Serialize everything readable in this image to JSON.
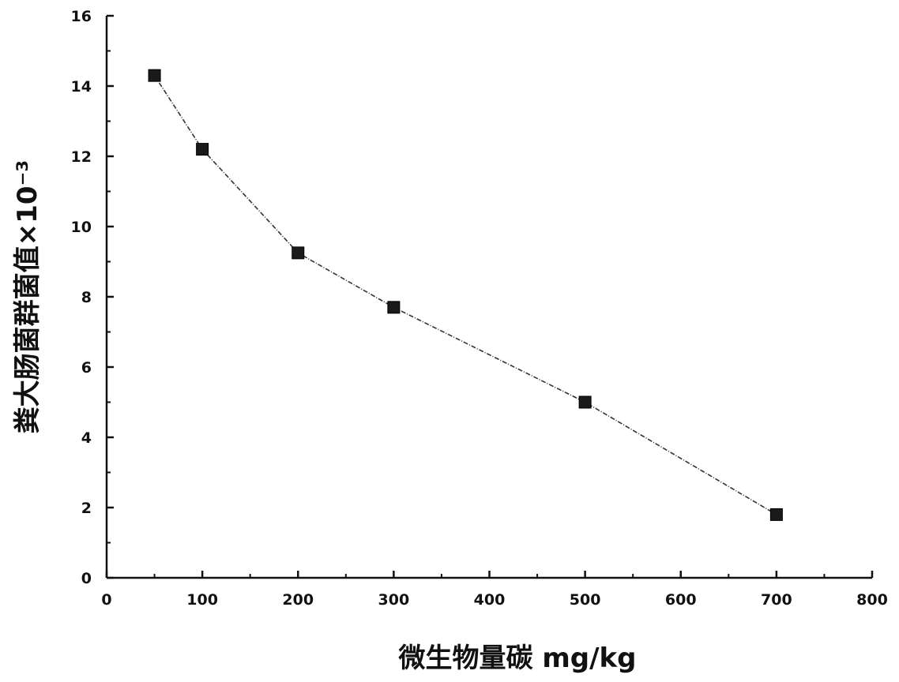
{
  "chart_data": {
    "type": "line",
    "title": "",
    "xlabel": "微生物量碳 mg/kg",
    "ylabel": "粪大肠菌群菌值×10⁻³",
    "xlim": [
      0,
      800
    ],
    "ylim": [
      0,
      16
    ],
    "x_ticks": [
      0,
      100,
      200,
      300,
      400,
      500,
      600,
      700,
      800
    ],
    "y_ticks": [
      0,
      2,
      4,
      6,
      8,
      10,
      12,
      14,
      16
    ],
    "x_tick_labels": [
      "0",
      "100",
      "200",
      "300",
      "400",
      "500",
      "600",
      "700",
      "800"
    ],
    "y_tick_labels": [
      "0",
      "2",
      "4",
      "6",
      "8",
      "10",
      "12",
      "14",
      "16"
    ],
    "grid": false,
    "legend": "none",
    "marker": "square",
    "colors": {
      "axis": "#111111",
      "line": "#333333",
      "marker": "#1a1a1a"
    },
    "series": [
      {
        "x": [
          50,
          100,
          200,
          300,
          500,
          700
        ],
        "values": [
          14.3,
          12.2,
          9.25,
          7.7,
          5.0,
          1.8
        ]
      }
    ]
  }
}
